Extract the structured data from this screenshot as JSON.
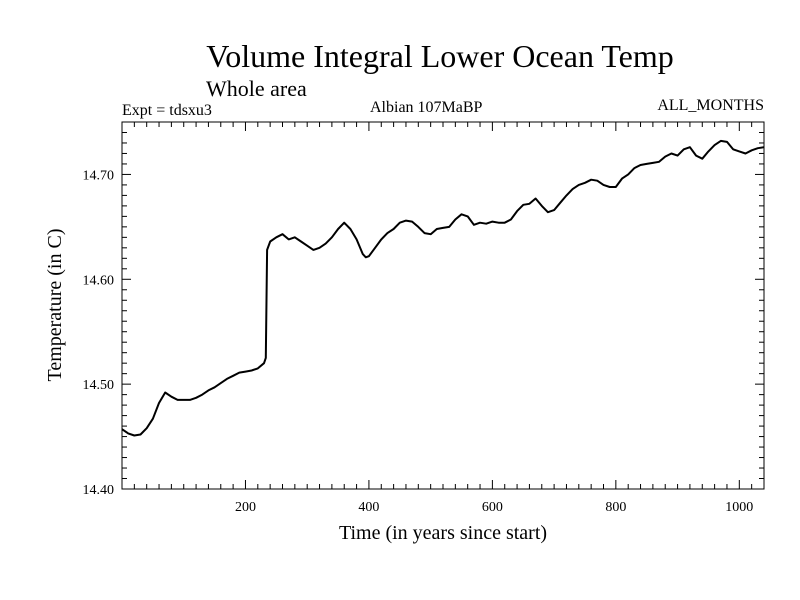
{
  "header": {
    "title": "Volume Integral Lower Ocean Temp",
    "subtitle": "Whole area",
    "experiment": "Expt = tdsxu3",
    "period": "Albian   107MaBP",
    "months": "ALL_MONTHS"
  },
  "chart_data": {
    "type": "line",
    "title": "Volume Integral Lower Ocean Temp",
    "subtitle": "Whole area",
    "xlabel": "Time (in years since start)",
    "ylabel": "Temperature (in C)",
    "xlim": [
      0,
      1040
    ],
    "ylim": [
      14.4,
      14.75
    ],
    "x_ticks": [
      200,
      400,
      600,
      800,
      1000
    ],
    "x_tick_labels": [
      "200",
      "400",
      "600",
      "800",
      "1000"
    ],
    "y_ticks": [
      14.4,
      14.5,
      14.6,
      14.7
    ],
    "y_tick_labels": [
      "14.40",
      "14.50",
      "14.60",
      "14.70"
    ],
    "grid": false,
    "series": [
      {
        "name": "Lower ocean temperature",
        "color": "#000000",
        "x": [
          0,
          10,
          20,
          30,
          40,
          50,
          60,
          70,
          80,
          90,
          100,
          110,
          120,
          130,
          140,
          150,
          160,
          170,
          180,
          190,
          200,
          210,
          220,
          230,
          233,
          235,
          240,
          250,
          260,
          270,
          280,
          290,
          300,
          310,
          320,
          330,
          340,
          350,
          360,
          370,
          380,
          390,
          395,
          400,
          410,
          420,
          430,
          440,
          450,
          460,
          470,
          480,
          490,
          500,
          510,
          520,
          530,
          540,
          550,
          560,
          570,
          580,
          590,
          600,
          610,
          620,
          630,
          640,
          650,
          660,
          670,
          680,
          690,
          700,
          710,
          720,
          730,
          740,
          750,
          760,
          770,
          780,
          790,
          800,
          810,
          820,
          830,
          840,
          850,
          860,
          870,
          880,
          890,
          900,
          910,
          920,
          930,
          940,
          950,
          960,
          970,
          980,
          990,
          1000,
          1010,
          1020,
          1030,
          1040
        ],
        "y": [
          14.457,
          14.453,
          14.451,
          14.452,
          14.458,
          14.467,
          14.482,
          14.492,
          14.488,
          14.485,
          14.485,
          14.485,
          14.487,
          14.49,
          14.494,
          14.497,
          14.501,
          14.505,
          14.508,
          14.511,
          14.512,
          14.513,
          14.515,
          14.52,
          14.525,
          14.628,
          14.636,
          14.64,
          14.643,
          14.638,
          14.64,
          14.636,
          14.632,
          14.628,
          14.63,
          14.634,
          14.64,
          14.648,
          14.654,
          14.648,
          14.638,
          14.624,
          14.621,
          14.622,
          14.63,
          14.638,
          14.644,
          14.648,
          14.654,
          14.656,
          14.655,
          14.65,
          14.644,
          14.643,
          14.648,
          14.649,
          14.65,
          14.657,
          14.662,
          14.66,
          14.652,
          14.654,
          14.653,
          14.655,
          14.654,
          14.654,
          14.657,
          14.665,
          14.671,
          14.672,
          14.677,
          14.67,
          14.664,
          14.666,
          14.673,
          14.68,
          14.686,
          14.69,
          14.692,
          14.695,
          14.694,
          14.69,
          14.688,
          14.688,
          14.696,
          14.7,
          14.706,
          14.709,
          14.71,
          14.711,
          14.712,
          14.717,
          14.72,
          14.718,
          14.724,
          14.726,
          14.718,
          14.715,
          14.722,
          14.728,
          14.732,
          14.731,
          14.724,
          14.722,
          14.72,
          14.723,
          14.725,
          14.726
        ]
      }
    ]
  }
}
